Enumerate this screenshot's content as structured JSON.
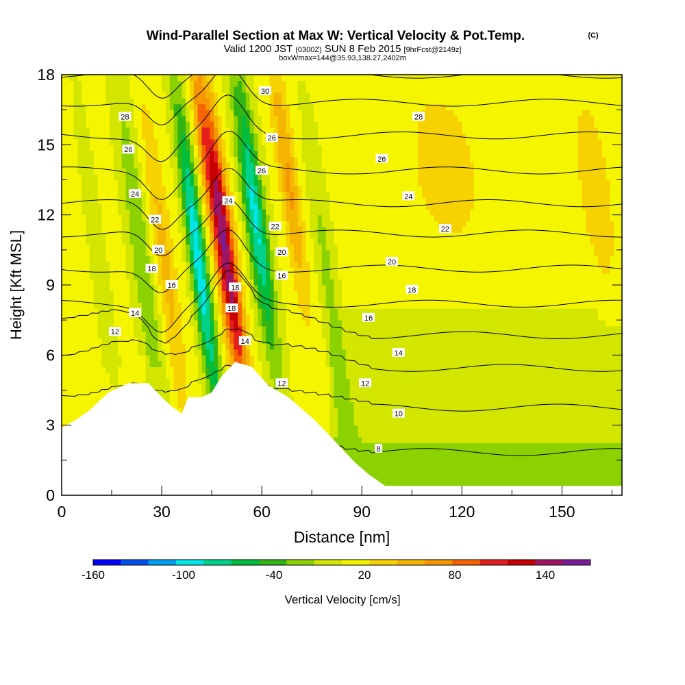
{
  "chart_data": {
    "type": "heatmap",
    "title": "Wind-Parallel Section at Max W: Vertical Velocity & Pot.Temp.",
    "title_mark": "(C)",
    "subtitle": {
      "valid": "Valid 1200 JST",
      "utc": "(0300Z)",
      "date": "SUN 8 Feb 2015",
      "forecast": "[9hrFcst@2149z]"
    },
    "box_line": "boxWmax=144@35.93,138.27,2402m",
    "xlabel": "Distance [nm]",
    "ylabel": "Height [Kft MSL]",
    "xlim": [
      0,
      168
    ],
    "ylim": [
      0,
      18
    ],
    "x_ticks": [
      0,
      30,
      60,
      90,
      120,
      150
    ],
    "y_ticks": [
      0,
      3,
      6,
      9,
      12,
      15,
      18
    ],
    "colorbar": {
      "label": "Vertical Velocity [cm/s]",
      "tick_labels": [
        "-160",
        "-100",
        "-40",
        "20",
        "80",
        "140"
      ],
      "tick_values": [
        -160,
        -100,
        -40,
        20,
        80,
        140
      ],
      "range": [
        -160,
        170
      ],
      "colors": [
        "#0000ff",
        "#0050f0",
        "#00a0f0",
        "#00e6e6",
        "#00d28c",
        "#00be3c",
        "#32b414",
        "#8cd200",
        "#d2e600",
        "#f5f500",
        "#f5d200",
        "#f5b400",
        "#f59600",
        "#f56400",
        "#e61e1e",
        "#c80000",
        "#a01464",
        "#781e96"
      ]
    },
    "terrain": [
      [
        0,
        2.9
      ],
      [
        4,
        3.2
      ],
      [
        8,
        3.6
      ],
      [
        11,
        4.0
      ],
      [
        14,
        4.4
      ],
      [
        20,
        4.8
      ],
      [
        26,
        4.8
      ],
      [
        30,
        4.2
      ],
      [
        33,
        3.8
      ],
      [
        36,
        3.5
      ],
      [
        38,
        4.2
      ],
      [
        42,
        4.2
      ],
      [
        45,
        4.4
      ],
      [
        48,
        5.1
      ],
      [
        52,
        5.7
      ],
      [
        57,
        5.5
      ],
      [
        62,
        4.7
      ],
      [
        68,
        4.2
      ],
      [
        72,
        3.7
      ],
      [
        76,
        3.2
      ],
      [
        80,
        2.6
      ],
      [
        84,
        2.0
      ],
      [
        88,
        1.4
      ],
      [
        92,
        0.9
      ],
      [
        97,
        0.4
      ],
      [
        168,
        0.4
      ]
    ],
    "updrafts": [
      {
        "x": 49,
        "z": 10.5,
        "sx": 3.0,
        "sz": 6.5,
        "w": 144
      },
      {
        "x": 68,
        "z": 13.5,
        "sx": 2.8,
        "sz": 5.5,
        "w": 55
      },
      {
        "x": 31,
        "z": 10.0,
        "sx": 3.0,
        "sz": 7.0,
        "w": 40
      },
      {
        "x": 42,
        "z": 15.5,
        "sx": 2.2,
        "sz": 4.0,
        "w": 40
      },
      {
        "x": 115,
        "z": 14.0,
        "sx": 12.0,
        "sz": 4.0,
        "w": 25
      },
      {
        "x": 160,
        "z": 13.0,
        "sx": 6.0,
        "sz": 5.0,
        "w": 25
      }
    ],
    "downdrafts": [
      {
        "x": 41,
        "z": 10.0,
        "sx": 2.5,
        "sz": 7.0,
        "w": -110
      },
      {
        "x": 58,
        "z": 12.0,
        "sx": 3.0,
        "sz": 6.0,
        "w": -100
      },
      {
        "x": 24,
        "z": 10.0,
        "sx": 3.0,
        "sz": 8.0,
        "w": -40
      },
      {
        "x": 80,
        "z": 9.0,
        "sx": 2.5,
        "sz": 6.0,
        "w": -28
      },
      {
        "x": 12,
        "z": 9.0,
        "sx": 2.0,
        "sz": 7.0,
        "w": -20
      }
    ],
    "theta_levels": [
      {
        "label": "8",
        "base": 2.0
      },
      {
        "label": "10",
        "base": 3.9
      },
      {
        "label": "12",
        "base": 5.6
      },
      {
        "label": "14",
        "base": 7.0
      },
      {
        "label": "16",
        "base": 8.2
      },
      {
        "label": "18",
        "base": 9.7
      },
      {
        "label": "20",
        "base": 11.2
      },
      {
        "label": "22",
        "base": 12.5
      },
      {
        "label": "24",
        "base": 13.9
      },
      {
        "label": "26",
        "base": 15.4
      },
      {
        "label": "28",
        "base": 16.8
      },
      {
        "label": "30",
        "base": 18.0
      }
    ],
    "contour_labels": [
      {
        "text": "12",
        "x": 16,
        "z": 7.0
      },
      {
        "text": "14",
        "x": 22,
        "z": 7.8
      },
      {
        "text": "16",
        "x": 33,
        "z": 9.0
      },
      {
        "text": "18",
        "x": 27,
        "z": 9.7
      },
      {
        "text": "20",
        "x": 29,
        "z": 10.5
      },
      {
        "text": "22",
        "x": 28,
        "z": 11.8
      },
      {
        "text": "24",
        "x": 22,
        "z": 12.9
      },
      {
        "text": "26",
        "x": 20,
        "z": 14.8
      },
      {
        "text": "28",
        "x": 19,
        "z": 16.2
      },
      {
        "text": "24",
        "x": 50,
        "z": 12.6
      },
      {
        "text": "18",
        "x": 51,
        "z": 8.0
      },
      {
        "text": "18",
        "x": 52,
        "z": 8.9
      },
      {
        "text": "14",
        "x": 55,
        "z": 6.6
      },
      {
        "text": "16",
        "x": 66,
        "z": 9.4
      },
      {
        "text": "22",
        "x": 64,
        "z": 11.5
      },
      {
        "text": "20",
        "x": 66,
        "z": 10.4
      },
      {
        "text": "26",
        "x": 60,
        "z": 13.9
      },
      {
        "text": "26",
        "x": 63,
        "z": 15.3
      },
      {
        "text": "30",
        "x": 61,
        "z": 17.3
      },
      {
        "text": "12",
        "x": 66,
        "z": 4.8
      },
      {
        "text": "28",
        "x": 107,
        "z": 16.2
      },
      {
        "text": "26",
        "x": 96,
        "z": 14.4
      },
      {
        "text": "24",
        "x": 104,
        "z": 12.8
      },
      {
        "text": "22",
        "x": 115,
        "z": 11.4
      },
      {
        "text": "20",
        "x": 99,
        "z": 10.0
      },
      {
        "text": "18",
        "x": 105,
        "z": 8.8
      },
      {
        "text": "16",
        "x": 92,
        "z": 7.6
      },
      {
        "text": "14",
        "x": 101,
        "z": 6.1
      },
      {
        "text": "12",
        "x": 91,
        "z": 4.8
      },
      {
        "text": "10",
        "x": 101,
        "z": 3.5
      },
      {
        "text": "8",
        "x": 95,
        "z": 2.0
      }
    ],
    "grid": false
  }
}
